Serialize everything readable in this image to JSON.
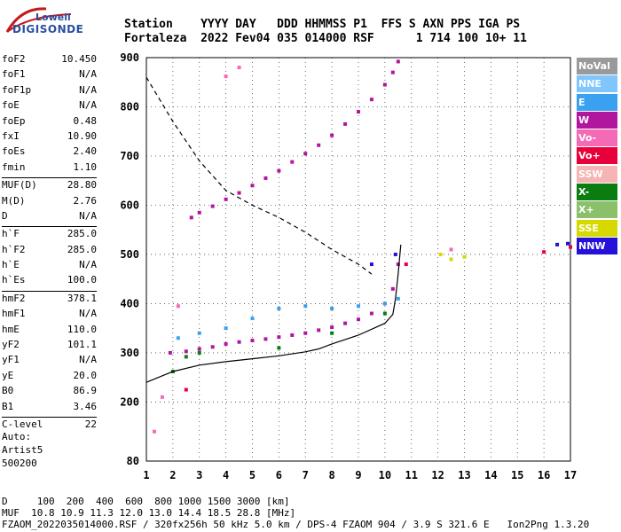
{
  "logo": {
    "line1": "Lowell",
    "line2": "DIGISONDE"
  },
  "header": {
    "line1": "Station    YYYY DAY   DDD HHMMSS P1  FFS S AXN PPS IGA PS",
    "line2": "Fortaleza  2022 Fev04 035 014000 RSF      1 714 100 10+ 11"
  },
  "params": [
    {
      "k": "foF2",
      "v": "10.450"
    },
    {
      "k": "foF1",
      "v": "N/A"
    },
    {
      "k": "foF1p",
      "v": "N/A"
    },
    {
      "k": "foE",
      "v": "N/A"
    },
    {
      "k": "foEp",
      "v": "0.48"
    },
    {
      "k": "fxI",
      "v": "10.90"
    },
    {
      "k": "foEs",
      "v": "2.40"
    },
    {
      "k": "fmin",
      "v": "1.10"
    },
    {
      "sep": true
    },
    {
      "k": "MUF(D)",
      "v": "28.80"
    },
    {
      "k": "M(D)",
      "v": "2.76"
    },
    {
      "k": "D",
      "v": "N/A"
    },
    {
      "sep": true
    },
    {
      "k": "h`F",
      "v": "285.0"
    },
    {
      "k": "h`F2",
      "v": "285.0"
    },
    {
      "k": "h`E",
      "v": "N/A"
    },
    {
      "k": "h`Es",
      "v": "100.0"
    },
    {
      "sep": true
    },
    {
      "k": "hmF2",
      "v": "378.1"
    },
    {
      "k": "hmF1",
      "v": "N/A"
    },
    {
      "k": "hmE",
      "v": "110.0"
    },
    {
      "k": "yF2",
      "v": "101.1"
    },
    {
      "k": "yF1",
      "v": "N/A"
    },
    {
      "k": "yE",
      "v": "20.0"
    },
    {
      "k": "B0",
      "v": "86.9"
    },
    {
      "k": "B1",
      "v": "3.46"
    },
    {
      "sep": true
    },
    {
      "k": "C-level",
      "v": "22"
    }
  ],
  "auto": [
    "Auto:",
    "Artist5",
    "500200"
  ],
  "footer": {
    "line1": "D     100  200  400  600  800 1000 1500 3000 [km]",
    "line2": "MUF  10.8 10.9 11.3 12.0 13.0 14.4 18.5 28.8 [MHz]",
    "line3": "FZAOM_2022035014000.RSF / 320fx256h 50 kHz 5.0 km / DPS-4 FZAOM 904 / 3.9 S 321.6 E   Ion2Png 1.3.20"
  },
  "legend": [
    {
      "label": "NoVal",
      "color": "#9a9a9a"
    },
    {
      "label": "NNE",
      "color": "#7fc6ff"
    },
    {
      "label": "E",
      "color": "#3aa0f0"
    },
    {
      "label": "W",
      "color": "#b0179e"
    },
    {
      "label": "Vo-",
      "color": "#f46ab4"
    },
    {
      "label": "Vo+",
      "color": "#e8003a"
    },
    {
      "label": "SSW",
      "color": "#f7b4b4"
    },
    {
      "label": "X-",
      "color": "#0b7d10"
    },
    {
      "label": "X+",
      "color": "#8ac06a"
    },
    {
      "label": "SSE",
      "color": "#d6d900"
    },
    {
      "label": "NNW",
      "color": "#2410d8"
    }
  ],
  "chart_data": {
    "type": "scatter",
    "x_ticks": [
      1,
      2,
      3,
      4,
      5,
      6,
      7,
      8,
      9,
      10,
      11,
      12,
      13,
      14,
      15,
      16,
      17
    ],
    "y_ticks": [
      80,
      200,
      300,
      400,
      500,
      600,
      700,
      800,
      900
    ],
    "xlim": [
      1,
      17
    ],
    "ylim": [
      80,
      900
    ],
    "grid": true,
    "legend_position": "right",
    "series": [
      {
        "color": "#b0179e",
        "points": [
          [
            1.9,
            300
          ],
          [
            2.5,
            303
          ],
          [
            3.0,
            308
          ],
          [
            3.5,
            312
          ],
          [
            4.0,
            318
          ],
          [
            4.5,
            322
          ],
          [
            5.0,
            325
          ],
          [
            5.5,
            328
          ],
          [
            6.0,
            332
          ],
          [
            6.5,
            336
          ],
          [
            7.0,
            340
          ],
          [
            7.5,
            346
          ],
          [
            8.0,
            352
          ],
          [
            8.5,
            360
          ],
          [
            9.0,
            368
          ],
          [
            9.5,
            380
          ],
          [
            10.0,
            400
          ],
          [
            10.3,
            430
          ],
          [
            10.5,
            480
          ]
        ]
      },
      {
        "color": "#b0179e",
        "points": [
          [
            2.7,
            575
          ],
          [
            3.0,
            585
          ],
          [
            3.5,
            598
          ],
          [
            4.0,
            612
          ],
          [
            4.5,
            625
          ],
          [
            5.0,
            640
          ],
          [
            5.5,
            655
          ],
          [
            6.0,
            670
          ],
          [
            6.5,
            688
          ],
          [
            7.0,
            705
          ],
          [
            7.5,
            722
          ],
          [
            8.0,
            742
          ],
          [
            8.5,
            765
          ],
          [
            9.0,
            790
          ],
          [
            9.5,
            815
          ],
          [
            10.0,
            845
          ],
          [
            10.3,
            870
          ],
          [
            10.5,
            892
          ]
        ]
      },
      {
        "color": "#3aa0f0",
        "points": [
          [
            2.2,
            330
          ],
          [
            3.0,
            340
          ],
          [
            4.0,
            350
          ],
          [
            5.0,
            370
          ],
          [
            6.0,
            390
          ],
          [
            7.0,
            395
          ],
          [
            8.0,
            390
          ],
          [
            9.0,
            395
          ],
          [
            10.0,
            400
          ],
          [
            10.5,
            410
          ]
        ]
      },
      {
        "color": "#0b7d10",
        "points": [
          [
            2.0,
            262
          ],
          [
            2.5,
            292
          ],
          [
            3.0,
            300
          ],
          [
            6.0,
            310
          ],
          [
            8.0,
            340
          ],
          [
            10.0,
            380
          ]
        ]
      },
      {
        "color": "#f46ab4",
        "points": [
          [
            1.3,
            140
          ],
          [
            1.6,
            210
          ],
          [
            2.2,
            395
          ],
          [
            4.0,
            862
          ],
          [
            4.5,
            880
          ],
          [
            12.5,
            510
          ]
        ]
      },
      {
        "color": "#e8003a",
        "points": [
          [
            2.5,
            225
          ],
          [
            10.8,
            480
          ],
          [
            16.0,
            505
          ],
          [
            17.0,
            515
          ]
        ]
      },
      {
        "color": "#2410d8",
        "points": [
          [
            9.5,
            480
          ],
          [
            10.4,
            500
          ],
          [
            16.5,
            520
          ],
          [
            16.9,
            522
          ]
        ]
      },
      {
        "color": "#d6d900",
        "points": [
          [
            12.1,
            500
          ],
          [
            12.5,
            490
          ],
          [
            13.0,
            495
          ]
        ]
      }
    ],
    "profile_solid": {
      "color": "#000000",
      "points": [
        [
          1.0,
          240
        ],
        [
          2.0,
          262
        ],
        [
          3.0,
          275
        ],
        [
          4.0,
          282
        ],
        [
          5.0,
          288
        ],
        [
          6.0,
          294
        ],
        [
          7.0,
          302
        ],
        [
          7.5,
          308
        ],
        [
          8.0,
          318
        ],
        [
          9.0,
          336
        ],
        [
          10.0,
          360
        ],
        [
          10.3,
          378
        ],
        [
          10.4,
          410
        ],
        [
          10.5,
          460
        ],
        [
          10.6,
          520
        ]
      ]
    },
    "profile_dashed": {
      "color": "#000000",
      "points": [
        [
          1.0,
          860
        ],
        [
          2.0,
          770
        ],
        [
          3.0,
          690
        ],
        [
          4.0,
          630
        ],
        [
          5.0,
          600
        ],
        [
          6.0,
          575
        ],
        [
          7.0,
          545
        ],
        [
          8.0,
          510
        ],
        [
          9.0,
          480
        ],
        [
          9.5,
          460
        ]
      ]
    }
  }
}
